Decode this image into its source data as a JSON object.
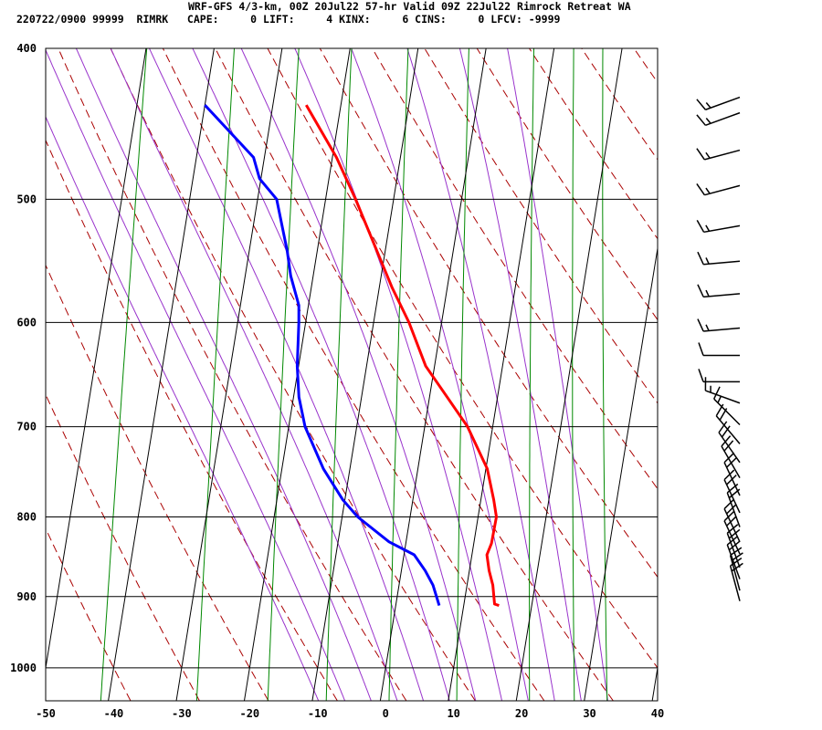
{
  "header": {
    "line1": "WRF-GFS 4/3-km, 00Z 20Jul22 57-hr Valid 09Z 22Jul22 Rimrock Retreat WA",
    "line2": "220722/0900 99999  RIMRK   CAPE:     0 LIFT:     4 KINX:     6 CINS:     0 LFCV: -9999"
  },
  "chart_data": {
    "type": "line",
    "title": "WRF-GFS 4/3-km, 00Z 20Jul22 57-hr Valid 09Z 22Jul22 Rimrock Retreat WA",
    "subtitle": "220722/0900 99999  RIMRK   CAPE:     0 LIFT:     4 KINX:     6 CINS:     0 LFCV: -9999",
    "xlabel": "",
    "ylabel": "",
    "xlim": [
      -50,
      40
    ],
    "ylim": [
      1050,
      400
    ],
    "x_ticks": [
      "-50",
      "-40",
      "-30",
      "-20",
      "-10",
      "0",
      "10",
      "20",
      "30",
      "40"
    ],
    "y_ticks": [
      "400",
      "500",
      "600",
      "700",
      "800",
      "900",
      "1000"
    ],
    "y_scale": "log-pressure",
    "grid": true,
    "colors": {
      "temperature": "#ff0000",
      "dewpoint": "#0000ff",
      "dry_adiabat": "#aa0000",
      "moist_adiabat": "#9933cc",
      "mixing_ratio": "#008800",
      "grid": "#000000"
    },
    "series": [
      {
        "key": "temperature",
        "points": [
          {
            "p": 912,
            "t": 15.2
          },
          {
            "p": 910,
            "t": 14.5
          },
          {
            "p": 885,
            "t": 13.8
          },
          {
            "p": 866,
            "t": 12.9
          },
          {
            "p": 846,
            "t": 12.2
          },
          {
            "p": 832,
            "t": 12.6
          },
          {
            "p": 800,
            "t": 12.7
          },
          {
            "p": 780,
            "t": 11.9
          },
          {
            "p": 745,
            "t": 10.2
          },
          {
            "p": 700,
            "t": 6.3
          },
          {
            "p": 670,
            "t": 2.6
          },
          {
            "p": 640,
            "t": -1.3
          },
          {
            "p": 600,
            "t": -4.8
          },
          {
            "p": 570,
            "t": -8.1
          },
          {
            "p": 540,
            "t": -11.2
          },
          {
            "p": 500,
            "t": -15.6
          },
          {
            "p": 470,
            "t": -19.4
          },
          {
            "p": 435,
            "t": -25.1
          }
        ]
      },
      {
        "key": "dewpoint",
        "points": [
          {
            "p": 912,
            "t": 6.4
          },
          {
            "p": 885,
            "t": 5.0
          },
          {
            "p": 866,
            "t": 3.5
          },
          {
            "p": 846,
            "t": 1.5
          },
          {
            "p": 830,
            "t": -2.5
          },
          {
            "p": 800,
            "t": -7.7
          },
          {
            "p": 780,
            "t": -10.3
          },
          {
            "p": 745,
            "t": -13.9
          },
          {
            "p": 700,
            "t": -17.6
          },
          {
            "p": 670,
            "t": -19.2
          },
          {
            "p": 640,
            "t": -20.2
          },
          {
            "p": 600,
            "t": -21.0
          },
          {
            "p": 585,
            "t": -21.4
          },
          {
            "p": 560,
            "t": -23.3
          },
          {
            "p": 540,
            "t": -24.4
          },
          {
            "p": 500,
            "t": -27.2
          },
          {
            "p": 485,
            "t": -30.2
          },
          {
            "p": 470,
            "t": -31.6
          },
          {
            "p": 435,
            "t": -40.0
          }
        ]
      }
    ],
    "dry_adiabats_theta_c": [
      -40,
      -30,
      -20,
      -10,
      0,
      10,
      20,
      30,
      40,
      50,
      60,
      70,
      80,
      90,
      100,
      110,
      120
    ],
    "moist_adiabats_theta_w_c": [
      -12,
      -8,
      -4,
      0,
      4,
      8,
      12,
      16,
      20,
      24,
      28,
      32
    ],
    "mixing_ratio_lines_gkg": [
      0.1,
      0.4,
      1,
      2,
      4,
      8,
      16,
      24,
      32
    ],
    "wind_barbs": [
      {
        "p": 906,
        "dir": 345,
        "kt": 20
      },
      {
        "p": 892,
        "dir": 345,
        "kt": 20
      },
      {
        "p": 877,
        "dir": 340,
        "kt": 20
      },
      {
        "p": 862,
        "dir": 340,
        "kt": 20
      },
      {
        "p": 845,
        "dir": 335,
        "kt": 20
      },
      {
        "p": 830,
        "dir": 335,
        "kt": 20
      },
      {
        "p": 812,
        "dir": 340,
        "kt": 20
      },
      {
        "p": 795,
        "dir": 335,
        "kt": 20
      },
      {
        "p": 775,
        "dir": 335,
        "kt": 20
      },
      {
        "p": 755,
        "dir": 330,
        "kt": 20
      },
      {
        "p": 738,
        "dir": 325,
        "kt": 20
      },
      {
        "p": 718,
        "dir": 320,
        "kt": 20
      },
      {
        "p": 698,
        "dir": 315,
        "kt": 15
      },
      {
        "p": 676,
        "dir": 290,
        "kt": 15
      },
      {
        "p": 655,
        "dir": 270,
        "kt": 10
      },
      {
        "p": 630,
        "dir": 270,
        "kt": 10
      },
      {
        "p": 605,
        "dir": 265,
        "kt": 15
      },
      {
        "p": 575,
        "dir": 265,
        "kt": 15
      },
      {
        "p": 548,
        "dir": 265,
        "kt": 15
      },
      {
        "p": 520,
        "dir": 260,
        "kt": 15
      },
      {
        "p": 490,
        "dir": 255,
        "kt": 15
      },
      {
        "p": 465,
        "dir": 255,
        "kt": 15
      },
      {
        "p": 440,
        "dir": 250,
        "kt": 15
      },
      {
        "p": 430,
        "dir": 250,
        "kt": 15
      }
    ]
  }
}
